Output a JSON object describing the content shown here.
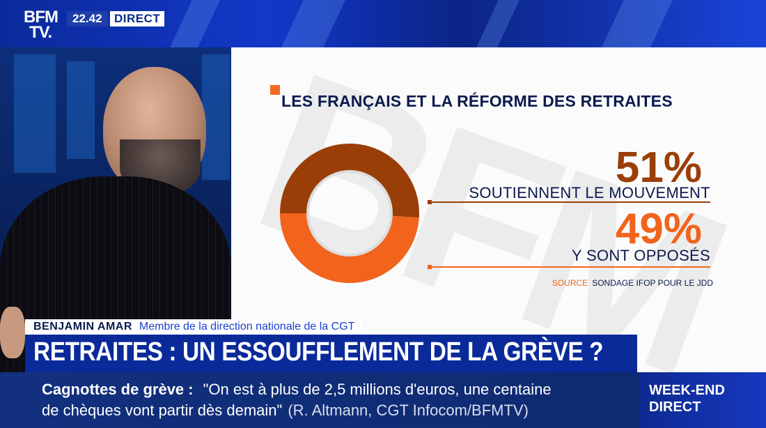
{
  "header": {
    "logo_line1": "BFM",
    "logo_line2": "TV.",
    "time": "22.42",
    "status": "DIRECT"
  },
  "graphic": {
    "title": "LES FRANÇAIS ET LA RÉFORME DES RETRAITES",
    "items": [
      {
        "percent": "51%",
        "label": "SOUTIENNENT LE MOUVEMENT",
        "color": "#9a3e08"
      },
      {
        "percent": "49%",
        "label": "Y SONT OPPOSÉS",
        "color": "#f2631c"
      }
    ],
    "source_label": "SOURCE",
    "source_text": "SONDAGE IFOP POUR LE JDD"
  },
  "chart_data": {
    "type": "pie",
    "categories": [
      "Soutiennent le mouvement",
      "Y sont opposés"
    ],
    "values": [
      51,
      49
    ],
    "colors": [
      "#9a3e08",
      "#f2631c"
    ],
    "title": "LES FRANÇAIS ET LA RÉFORME DES RETRAITES"
  },
  "lower_third": {
    "name": "BENJAMIN AMAR",
    "role": "Membre de la direction nationale de la CGT"
  },
  "headline": "RETRAITES : UN ESSOUFFLEMENT DE LA GRÈVE ?",
  "ticker": {
    "topic": "Cagnottes de grève  :",
    "quote_line1": "\"On est à plus de 2,5 millions d'euros, une centaine",
    "quote_line2": "de chèques vont partir dès demain\"",
    "attribution": "(R. Altmann, CGT Infocom/BFMTV)"
  },
  "program": {
    "line1": "WEEK-END",
    "line2": "DIRECT"
  }
}
